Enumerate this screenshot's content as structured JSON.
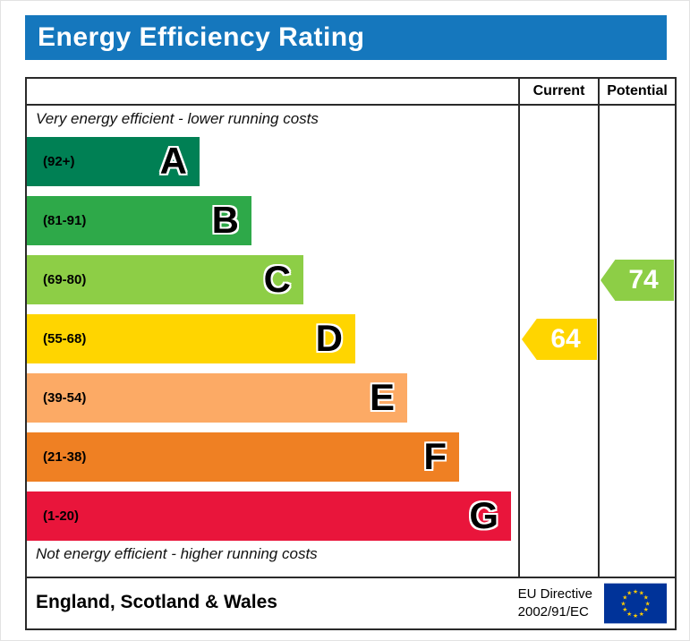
{
  "title": "Energy Efficiency Rating",
  "columns": {
    "current": "Current",
    "potential": "Potential"
  },
  "captions": {
    "top": "Very energy efficient - lower running costs",
    "bottom": "Not energy efficient - higher running costs"
  },
  "chart_data": {
    "type": "bar",
    "title": "Energy Efficiency Rating",
    "bands": [
      {
        "letter": "A",
        "range": "(92+)",
        "min": 92,
        "max": 100,
        "color": "#008054"
      },
      {
        "letter": "B",
        "range": "(81-91)",
        "min": 81,
        "max": 91,
        "color": "#2EA949"
      },
      {
        "letter": "C",
        "range": "(69-80)",
        "min": 69,
        "max": 80,
        "color": "#8DCE46"
      },
      {
        "letter": "D",
        "range": "(55-68)",
        "min": 55,
        "max": 68,
        "color": "#FFD500"
      },
      {
        "letter": "E",
        "range": "(39-54)",
        "min": 39,
        "max": 54,
        "color": "#FCAA65"
      },
      {
        "letter": "F",
        "range": "(21-38)",
        "min": 21,
        "max": 38,
        "color": "#EF8023"
      },
      {
        "letter": "G",
        "range": "(1-20)",
        "min": 1,
        "max": 20,
        "color": "#E9153B"
      }
    ],
    "current": {
      "value": 64,
      "band": "D",
      "color": "#FFD500"
    },
    "potential": {
      "value": 74,
      "band": "C",
      "color": "#8DCE46"
    }
  },
  "footer": {
    "region": "England, Scotland & Wales",
    "directive_line1": "EU Directive",
    "directive_line2": "2002/91/EC"
  },
  "colors": {
    "header_bg": "#1577BD",
    "header_text": "#FFFFFF",
    "flag_bg": "#003399",
    "flag_stars": "#FFCC00"
  }
}
